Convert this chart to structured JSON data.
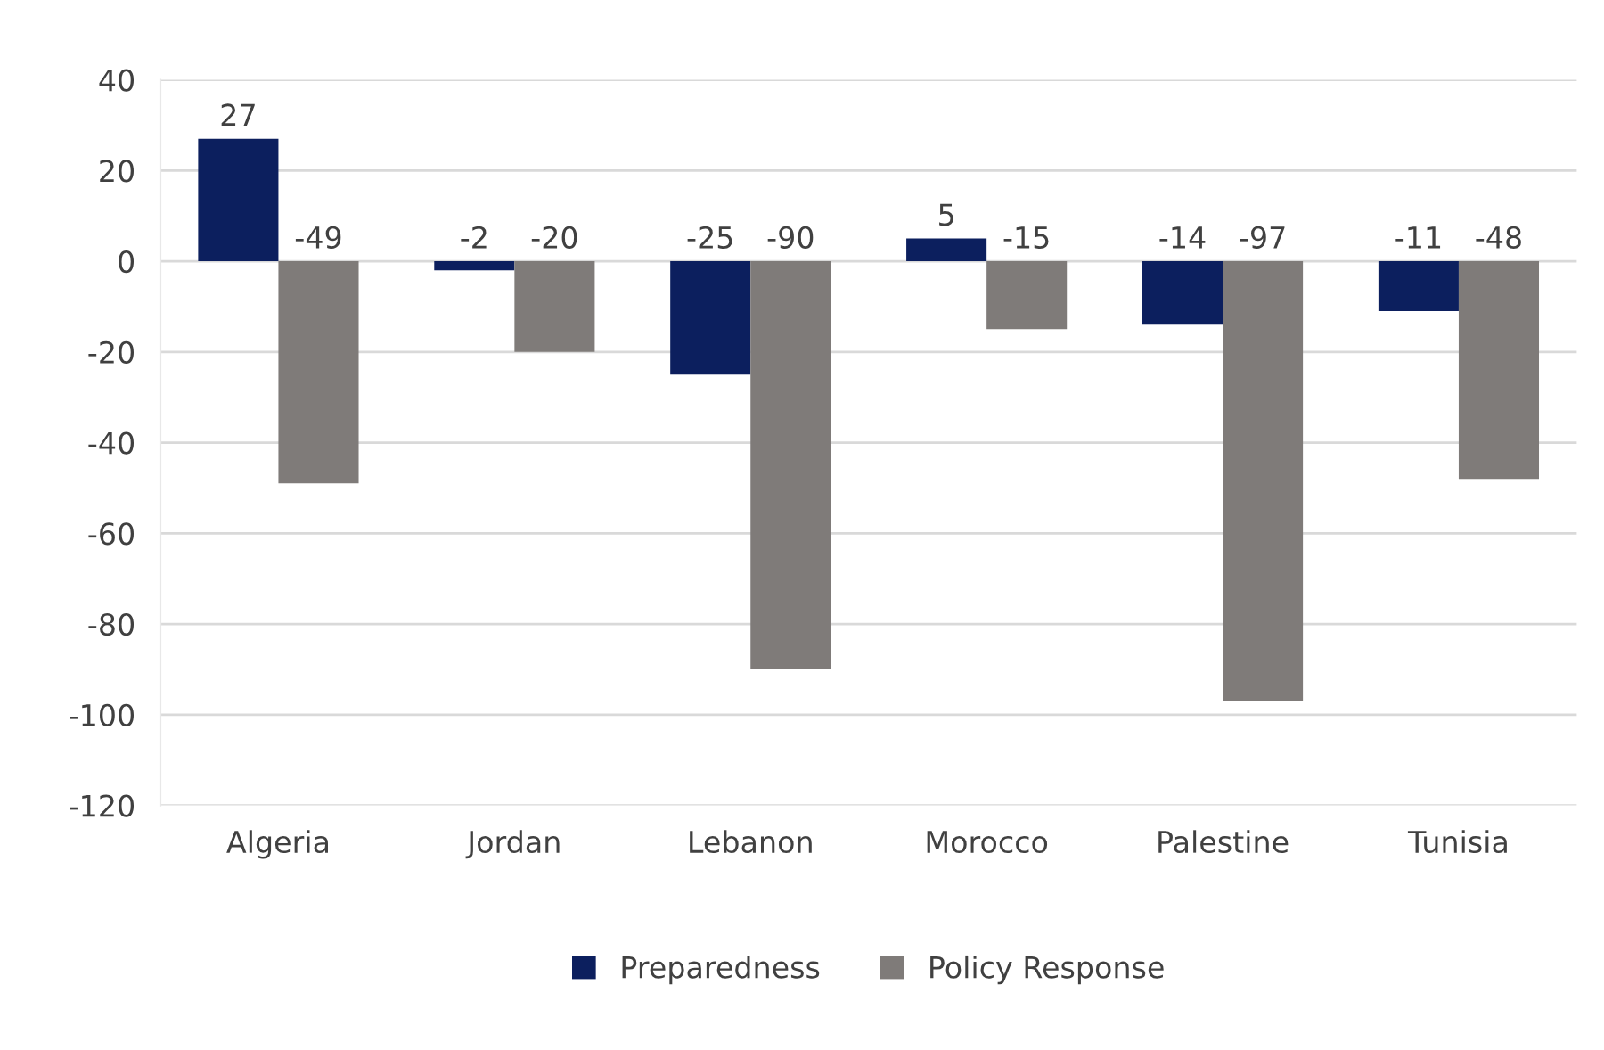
{
  "chart_data": {
    "type": "bar",
    "categories": [
      "Algeria",
      "Jordan",
      "Lebanon",
      "Morocco",
      "Palestine",
      "Tunisia"
    ],
    "series": [
      {
        "name": "Preparedness",
        "color": "#0c1f5e",
        "values": [
          27,
          -2,
          -25,
          5,
          -14,
          -11
        ]
      },
      {
        "name": "Policy Response",
        "color": "#7f7b79",
        "values": [
          -49,
          -20,
          -90,
          -15,
          -97,
          -48
        ]
      }
    ],
    "ylim": [
      -120,
      40
    ],
    "yticks": [
      -120,
      -100,
      -80,
      -60,
      -40,
      -20,
      0,
      20,
      40
    ],
    "grid": "y",
    "legend": "bottom",
    "data_labels": true
  }
}
